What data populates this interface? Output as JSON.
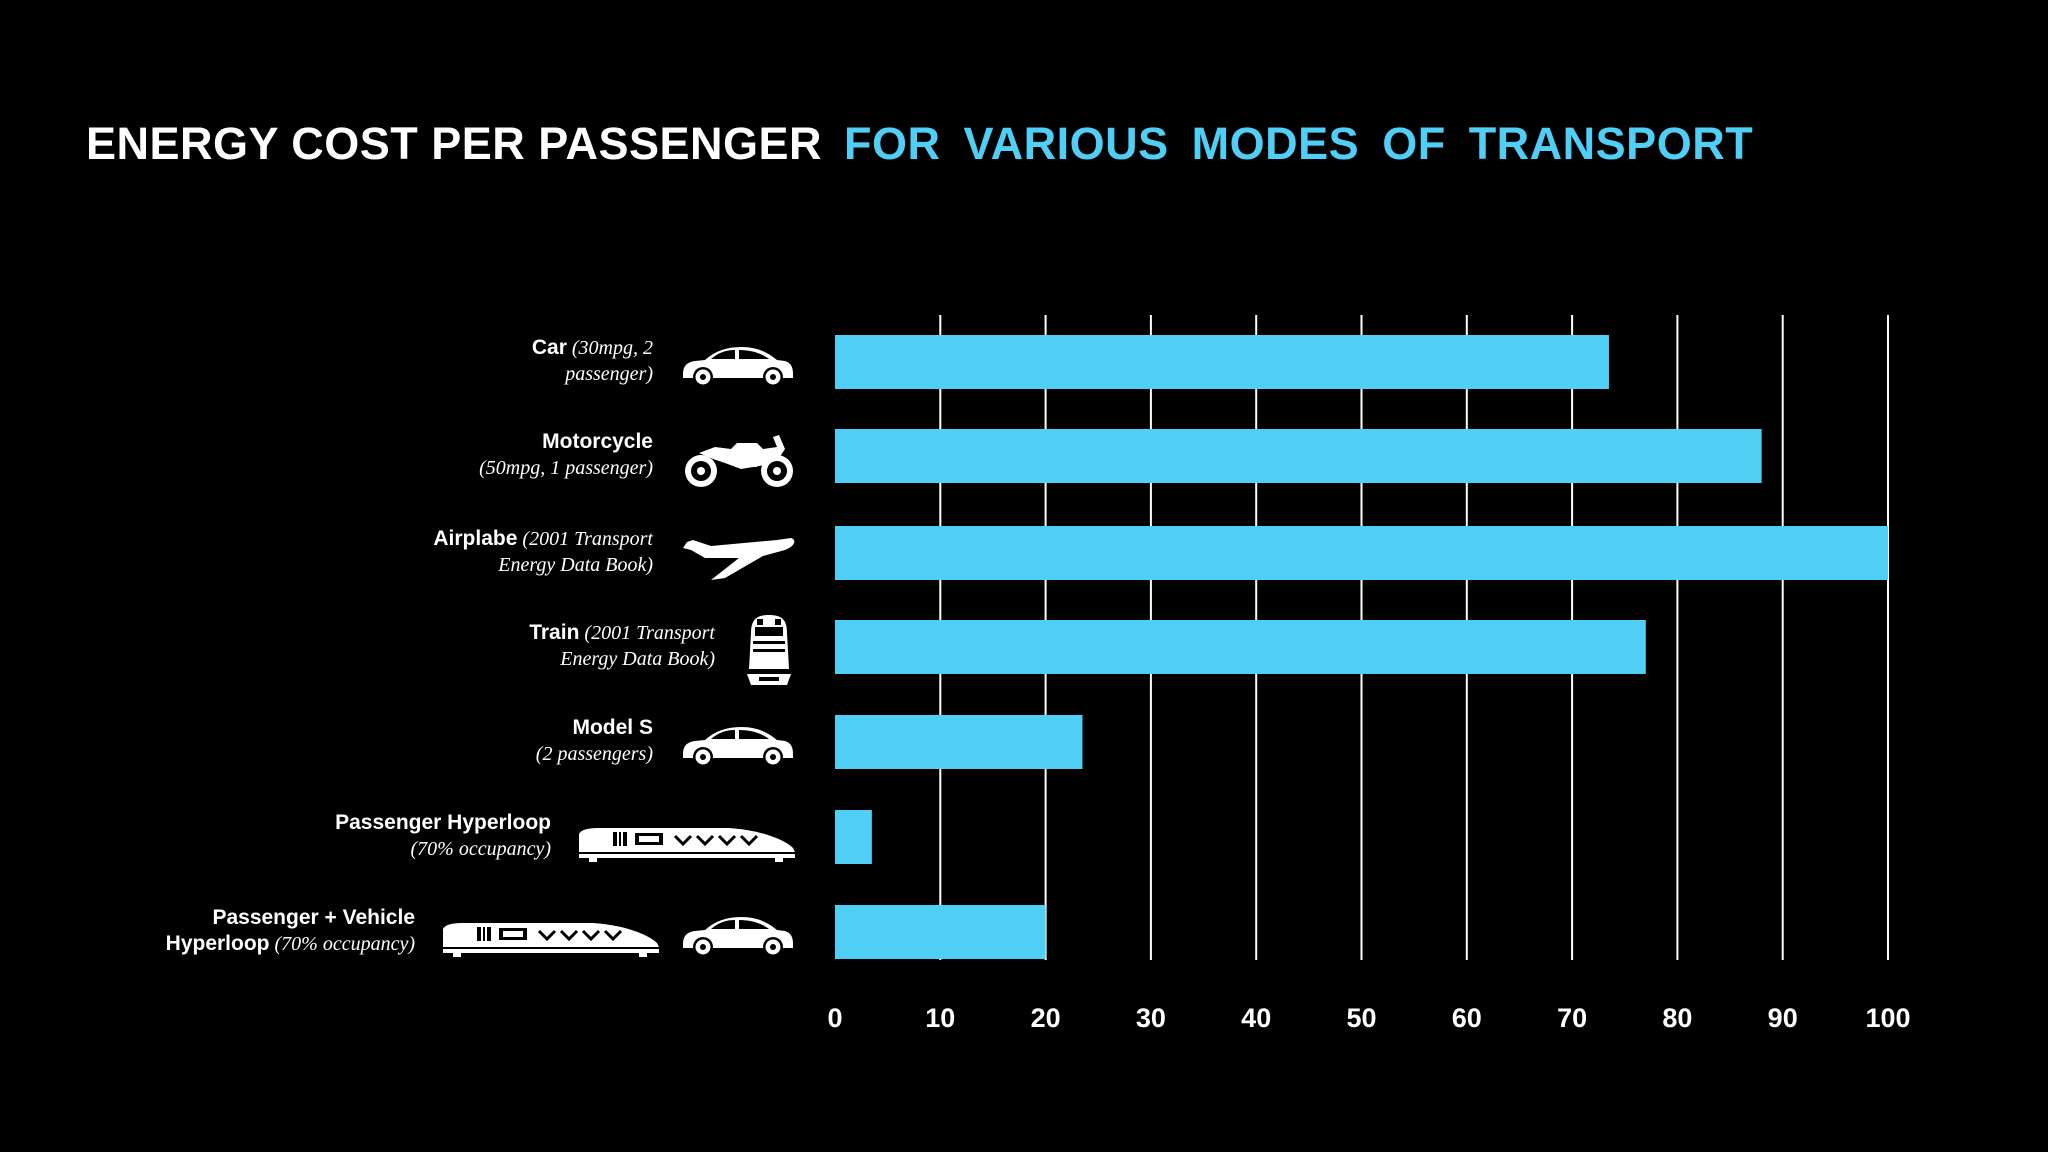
{
  "title": {
    "part1": "ENERGY COST PER PASSENGER",
    "part2": "FOR VARIOUS MODES OF TRANSPORT"
  },
  "colors": {
    "bar": "#4fcff5",
    "title_accent": "#4fcff5",
    "grid": "#ffffff",
    "background": "#000000"
  },
  "chart_data": {
    "type": "bar",
    "orientation": "horizontal",
    "title": "ENERGY COST PER PASSENGER FOR VARIOUS MODES OF TRANSPORT",
    "xlim": [
      0,
      100
    ],
    "xticks": [
      0,
      10,
      20,
      30,
      40,
      50,
      60,
      70,
      80,
      90,
      100
    ],
    "grid": true,
    "categories": [
      {
        "name": "Car",
        "lines": [
          {
            "bold": "Car",
            "italic": " (30mpg, 2"
          },
          {
            "bold": "",
            "italic": "passenger)"
          }
        ],
        "icons": [
          "car-icon"
        ],
        "value": 73.5
      },
      {
        "name": "Motorcycle",
        "lines": [
          {
            "bold": "Motorcycle",
            "italic": ""
          },
          {
            "bold": "",
            "italic": "(50mpg, 1 passenger)"
          }
        ],
        "icons": [
          "motorcycle-icon"
        ],
        "value": 88
      },
      {
        "name": "Airplabe",
        "lines": [
          {
            "bold": "Airplabe",
            "italic": "  (2001 Transport"
          },
          {
            "bold": "",
            "italic": "Energy Data Book)"
          }
        ],
        "icons": [
          "airplane-icon"
        ],
        "value": 100
      },
      {
        "name": "Train",
        "lines": [
          {
            "bold": "Train",
            "italic": "  (2001 Transport"
          },
          {
            "bold": "",
            "italic": "Energy Data Book)"
          }
        ],
        "icons": [
          "train-icon"
        ],
        "value": 77
      },
      {
        "name": "Model S",
        "lines": [
          {
            "bold": "Model S",
            "italic": ""
          },
          {
            "bold": "",
            "italic": "(2 passengers)"
          }
        ],
        "icons": [
          "car-icon"
        ],
        "value": 23.5
      },
      {
        "name": "Passenger Hyperloop",
        "lines": [
          {
            "bold": "Passenger  Hyperloop",
            "italic": ""
          },
          {
            "bold": "",
            "italic": "(70% occupancy)"
          }
        ],
        "icons": [
          "hyperloop-icon"
        ],
        "value": 3.5
      },
      {
        "name": "Passenger + Vehicle Hyperloop",
        "lines": [
          {
            "bold": "Passenger  + Vehicle",
            "italic": ""
          },
          {
            "bold": "Hyperloop",
            "italic": "  (70% occupancy)"
          }
        ],
        "icons": [
          "hyperloop-icon",
          "car-icon"
        ],
        "value": 20
      }
    ]
  }
}
